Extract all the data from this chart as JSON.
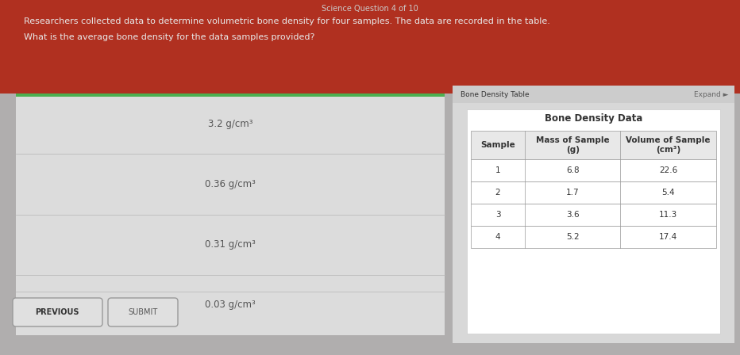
{
  "title": "Science Question 4 of 10",
  "question_text": "Researchers collected data to determine volumetric bone density for four samples. The data are recorded in the table.",
  "sub_question": "What is the average bone density for the data samples provided?",
  "answer_choices": [
    "3.2 g/cm³",
    "0.36 g/cm³",
    "0.31 g/cm³",
    "0.03 g/cm³"
  ],
  "table_title": "Bone Density Table",
  "table_subtitle": "Bone Density Data",
  "expand_text": "Expand ►",
  "table_headers": [
    "Sample",
    "Mass of Sample\n(g)",
    "Volume of Sample\n(cm³)"
  ],
  "table_data": [
    [
      "1",
      "6.8",
      "22.6"
    ],
    [
      "2",
      "1.7",
      "5.4"
    ],
    [
      "3",
      "3.6",
      "11.3"
    ],
    [
      "4",
      "5.2",
      "17.4"
    ]
  ],
  "bg_color": "#b0aeae",
  "header_bg": "#b03020",
  "left_panel_bg": "#dcdcdc",
  "right_panel_outer_bg": "#d8d8d8",
  "right_panel_inner_bg": "#f0f0f0",
  "table_bg": "#ffffff",
  "table_header_row_bg": "#e8e8e8",
  "header_text_color": "#e8e8e8",
  "title_text_color": "#cccccc",
  "body_text_color": "#333333",
  "answer_text_color": "#555555",
  "divider_color": "#bbbbbb",
  "green_bar_color": "#4caf50",
  "button_bg": "#e0e0e0",
  "button_border": "#999999",
  "title_fontsize": 7,
  "question_fontsize": 8,
  "answer_fontsize": 8.5,
  "table_fontsize": 7,
  "table_title_fontsize": 6.5,
  "table_header_fontsize": 7.5
}
